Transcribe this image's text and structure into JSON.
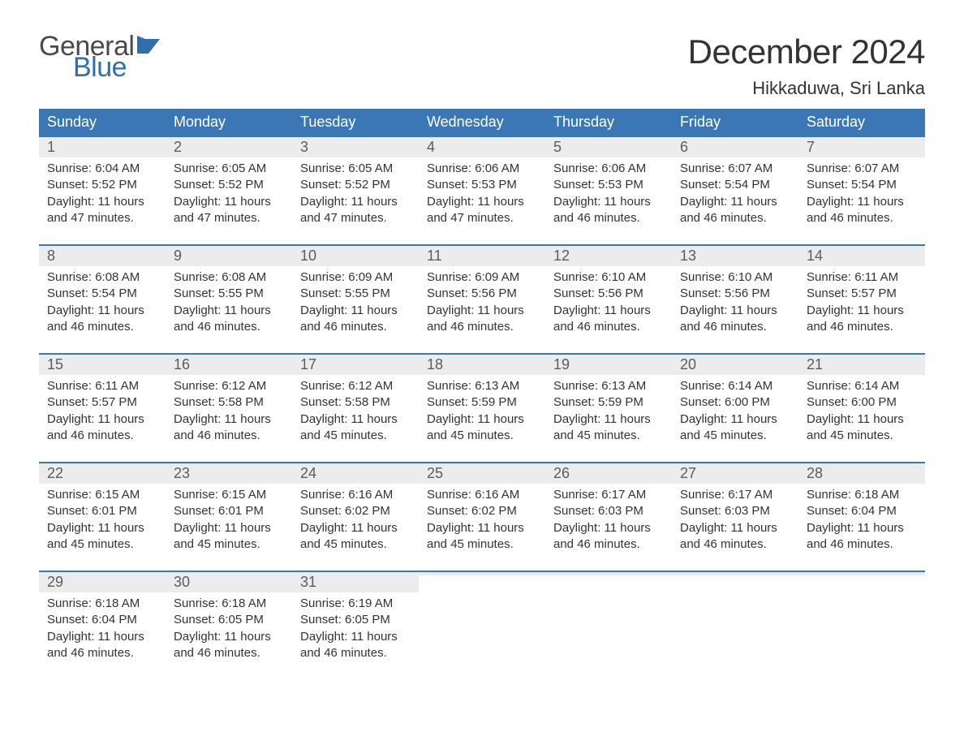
{
  "logo": {
    "text1": "General",
    "text2": "Blue",
    "grey_color": "#4a4a4a",
    "blue_color": "#2f6fad",
    "shape_color": "#2f6fad"
  },
  "title": "December 2024",
  "location": "Hikkaduwa, Sri Lanka",
  "colors": {
    "header_bg": "#3b77b5",
    "header_text": "#ffffff",
    "daynum_bg": "#ececec",
    "daynum_text": "#5c5c5c",
    "body_text": "#333333",
    "row_divider": "#3b77b5",
    "page_bg": "#ffffff"
  },
  "typography": {
    "title_fontsize": 42,
    "location_fontsize": 22,
    "dow_fontsize": 18,
    "daynum_fontsize": 18,
    "body_fontsize": 15,
    "font_family": "Arial"
  },
  "days_of_week": [
    "Sunday",
    "Monday",
    "Tuesday",
    "Wednesday",
    "Thursday",
    "Friday",
    "Saturday"
  ],
  "weeks": [
    [
      {
        "num": "1",
        "sunrise": "Sunrise: 6:04 AM",
        "sunset": "Sunset: 5:52 PM",
        "day1": "Daylight: 11 hours",
        "day2": "and 47 minutes."
      },
      {
        "num": "2",
        "sunrise": "Sunrise: 6:05 AM",
        "sunset": "Sunset: 5:52 PM",
        "day1": "Daylight: 11 hours",
        "day2": "and 47 minutes."
      },
      {
        "num": "3",
        "sunrise": "Sunrise: 6:05 AM",
        "sunset": "Sunset: 5:52 PM",
        "day1": "Daylight: 11 hours",
        "day2": "and 47 minutes."
      },
      {
        "num": "4",
        "sunrise": "Sunrise: 6:06 AM",
        "sunset": "Sunset: 5:53 PM",
        "day1": "Daylight: 11 hours",
        "day2": "and 47 minutes."
      },
      {
        "num": "5",
        "sunrise": "Sunrise: 6:06 AM",
        "sunset": "Sunset: 5:53 PM",
        "day1": "Daylight: 11 hours",
        "day2": "and 46 minutes."
      },
      {
        "num": "6",
        "sunrise": "Sunrise: 6:07 AM",
        "sunset": "Sunset: 5:54 PM",
        "day1": "Daylight: 11 hours",
        "day2": "and 46 minutes."
      },
      {
        "num": "7",
        "sunrise": "Sunrise: 6:07 AM",
        "sunset": "Sunset: 5:54 PM",
        "day1": "Daylight: 11 hours",
        "day2": "and 46 minutes."
      }
    ],
    [
      {
        "num": "8",
        "sunrise": "Sunrise: 6:08 AM",
        "sunset": "Sunset: 5:54 PM",
        "day1": "Daylight: 11 hours",
        "day2": "and 46 minutes."
      },
      {
        "num": "9",
        "sunrise": "Sunrise: 6:08 AM",
        "sunset": "Sunset: 5:55 PM",
        "day1": "Daylight: 11 hours",
        "day2": "and 46 minutes."
      },
      {
        "num": "10",
        "sunrise": "Sunrise: 6:09 AM",
        "sunset": "Sunset: 5:55 PM",
        "day1": "Daylight: 11 hours",
        "day2": "and 46 minutes."
      },
      {
        "num": "11",
        "sunrise": "Sunrise: 6:09 AM",
        "sunset": "Sunset: 5:56 PM",
        "day1": "Daylight: 11 hours",
        "day2": "and 46 minutes."
      },
      {
        "num": "12",
        "sunrise": "Sunrise: 6:10 AM",
        "sunset": "Sunset: 5:56 PM",
        "day1": "Daylight: 11 hours",
        "day2": "and 46 minutes."
      },
      {
        "num": "13",
        "sunrise": "Sunrise: 6:10 AM",
        "sunset": "Sunset: 5:56 PM",
        "day1": "Daylight: 11 hours",
        "day2": "and 46 minutes."
      },
      {
        "num": "14",
        "sunrise": "Sunrise: 6:11 AM",
        "sunset": "Sunset: 5:57 PM",
        "day1": "Daylight: 11 hours",
        "day2": "and 46 minutes."
      }
    ],
    [
      {
        "num": "15",
        "sunrise": "Sunrise: 6:11 AM",
        "sunset": "Sunset: 5:57 PM",
        "day1": "Daylight: 11 hours",
        "day2": "and 46 minutes."
      },
      {
        "num": "16",
        "sunrise": "Sunrise: 6:12 AM",
        "sunset": "Sunset: 5:58 PM",
        "day1": "Daylight: 11 hours",
        "day2": "and 46 minutes."
      },
      {
        "num": "17",
        "sunrise": "Sunrise: 6:12 AM",
        "sunset": "Sunset: 5:58 PM",
        "day1": "Daylight: 11 hours",
        "day2": "and 45 minutes."
      },
      {
        "num": "18",
        "sunrise": "Sunrise: 6:13 AM",
        "sunset": "Sunset: 5:59 PM",
        "day1": "Daylight: 11 hours",
        "day2": "and 45 minutes."
      },
      {
        "num": "19",
        "sunrise": "Sunrise: 6:13 AM",
        "sunset": "Sunset: 5:59 PM",
        "day1": "Daylight: 11 hours",
        "day2": "and 45 minutes."
      },
      {
        "num": "20",
        "sunrise": "Sunrise: 6:14 AM",
        "sunset": "Sunset: 6:00 PM",
        "day1": "Daylight: 11 hours",
        "day2": "and 45 minutes."
      },
      {
        "num": "21",
        "sunrise": "Sunrise: 6:14 AM",
        "sunset": "Sunset: 6:00 PM",
        "day1": "Daylight: 11 hours",
        "day2": "and 45 minutes."
      }
    ],
    [
      {
        "num": "22",
        "sunrise": "Sunrise: 6:15 AM",
        "sunset": "Sunset: 6:01 PM",
        "day1": "Daylight: 11 hours",
        "day2": "and 45 minutes."
      },
      {
        "num": "23",
        "sunrise": "Sunrise: 6:15 AM",
        "sunset": "Sunset: 6:01 PM",
        "day1": "Daylight: 11 hours",
        "day2": "and 45 minutes."
      },
      {
        "num": "24",
        "sunrise": "Sunrise: 6:16 AM",
        "sunset": "Sunset: 6:02 PM",
        "day1": "Daylight: 11 hours",
        "day2": "and 45 minutes."
      },
      {
        "num": "25",
        "sunrise": "Sunrise: 6:16 AM",
        "sunset": "Sunset: 6:02 PM",
        "day1": "Daylight: 11 hours",
        "day2": "and 45 minutes."
      },
      {
        "num": "26",
        "sunrise": "Sunrise: 6:17 AM",
        "sunset": "Sunset: 6:03 PM",
        "day1": "Daylight: 11 hours",
        "day2": "and 46 minutes."
      },
      {
        "num": "27",
        "sunrise": "Sunrise: 6:17 AM",
        "sunset": "Sunset: 6:03 PM",
        "day1": "Daylight: 11 hours",
        "day2": "and 46 minutes."
      },
      {
        "num": "28",
        "sunrise": "Sunrise: 6:18 AM",
        "sunset": "Sunset: 6:04 PM",
        "day1": "Daylight: 11 hours",
        "day2": "and 46 minutes."
      }
    ],
    [
      {
        "num": "29",
        "sunrise": "Sunrise: 6:18 AM",
        "sunset": "Sunset: 6:04 PM",
        "day1": "Daylight: 11 hours",
        "day2": "and 46 minutes."
      },
      {
        "num": "30",
        "sunrise": "Sunrise: 6:18 AM",
        "sunset": "Sunset: 6:05 PM",
        "day1": "Daylight: 11 hours",
        "day2": "and 46 minutes."
      },
      {
        "num": "31",
        "sunrise": "Sunrise: 6:19 AM",
        "sunset": "Sunset: 6:05 PM",
        "day1": "Daylight: 11 hours",
        "day2": "and 46 minutes."
      },
      {
        "empty": true
      },
      {
        "empty": true
      },
      {
        "empty": true
      },
      {
        "empty": true
      }
    ]
  ]
}
